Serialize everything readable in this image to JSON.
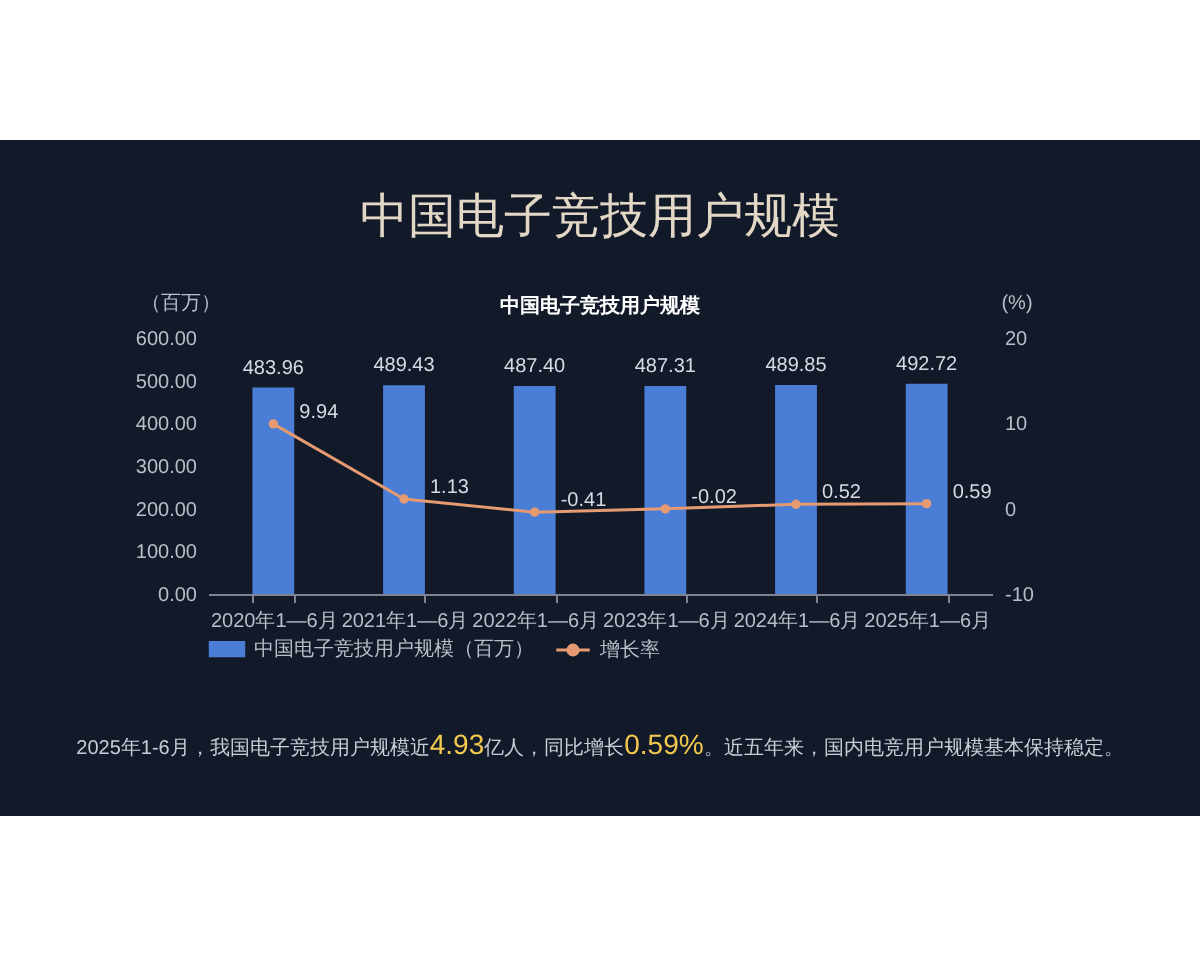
{
  "chart_data": {
    "type": "bar",
    "title": "中国电子竞技用户规模",
    "subtitle": "中国电子竞技用户规模",
    "ylabel": "（百万）",
    "y2label": "(%)",
    "categories": [
      "2020年1—6月",
      "2021年1—6月",
      "2022年1—6月",
      "2023年1—6月",
      "2024年1—6月",
      "2025年1—6月"
    ],
    "series": [
      {
        "name": "中国电子竞技用户规模（百万）",
        "type": "bar",
        "color": "#4a7dd6",
        "values": [
          483.96,
          489.43,
          487.4,
          487.31,
          489.85,
          492.72
        ],
        "value_labels": [
          "483.96",
          "489.43",
          "487.40",
          "487.31",
          "489.85",
          "492.72"
        ]
      },
      {
        "name": "增长率",
        "type": "line",
        "axis": "y2",
        "color": "#e69a72",
        "marker": "circle",
        "values": [
          9.94,
          1.13,
          -0.41,
          -0.02,
          0.52,
          0.59
        ],
        "value_labels": [
          "9.94",
          "1.13",
          "-0.41",
          "-0.02",
          "0.52",
          "0.59"
        ]
      }
    ],
    "ylim": [
      0,
      600
    ],
    "yticks": [
      {
        "value": 0,
        "label": "0.00"
      },
      {
        "value": 100,
        "label": "100.00"
      },
      {
        "value": 200,
        "label": "200.00"
      },
      {
        "value": 300,
        "label": "300.00"
      },
      {
        "value": 400,
        "label": "400.00"
      },
      {
        "value": 500,
        "label": "500.00"
      },
      {
        "value": 600,
        "label": "600.00"
      }
    ],
    "y2lim": [
      -10,
      20
    ],
    "y2ticks": [
      -10,
      0,
      10,
      20
    ],
    "legend": "bottom",
    "annotations": [
      "2025年1-6月，我国电子竞技用户规模近4.93亿人，同比增长0.59%。近五年来，国内电竞用户规模基本保持稳定。"
    ]
  }
}
